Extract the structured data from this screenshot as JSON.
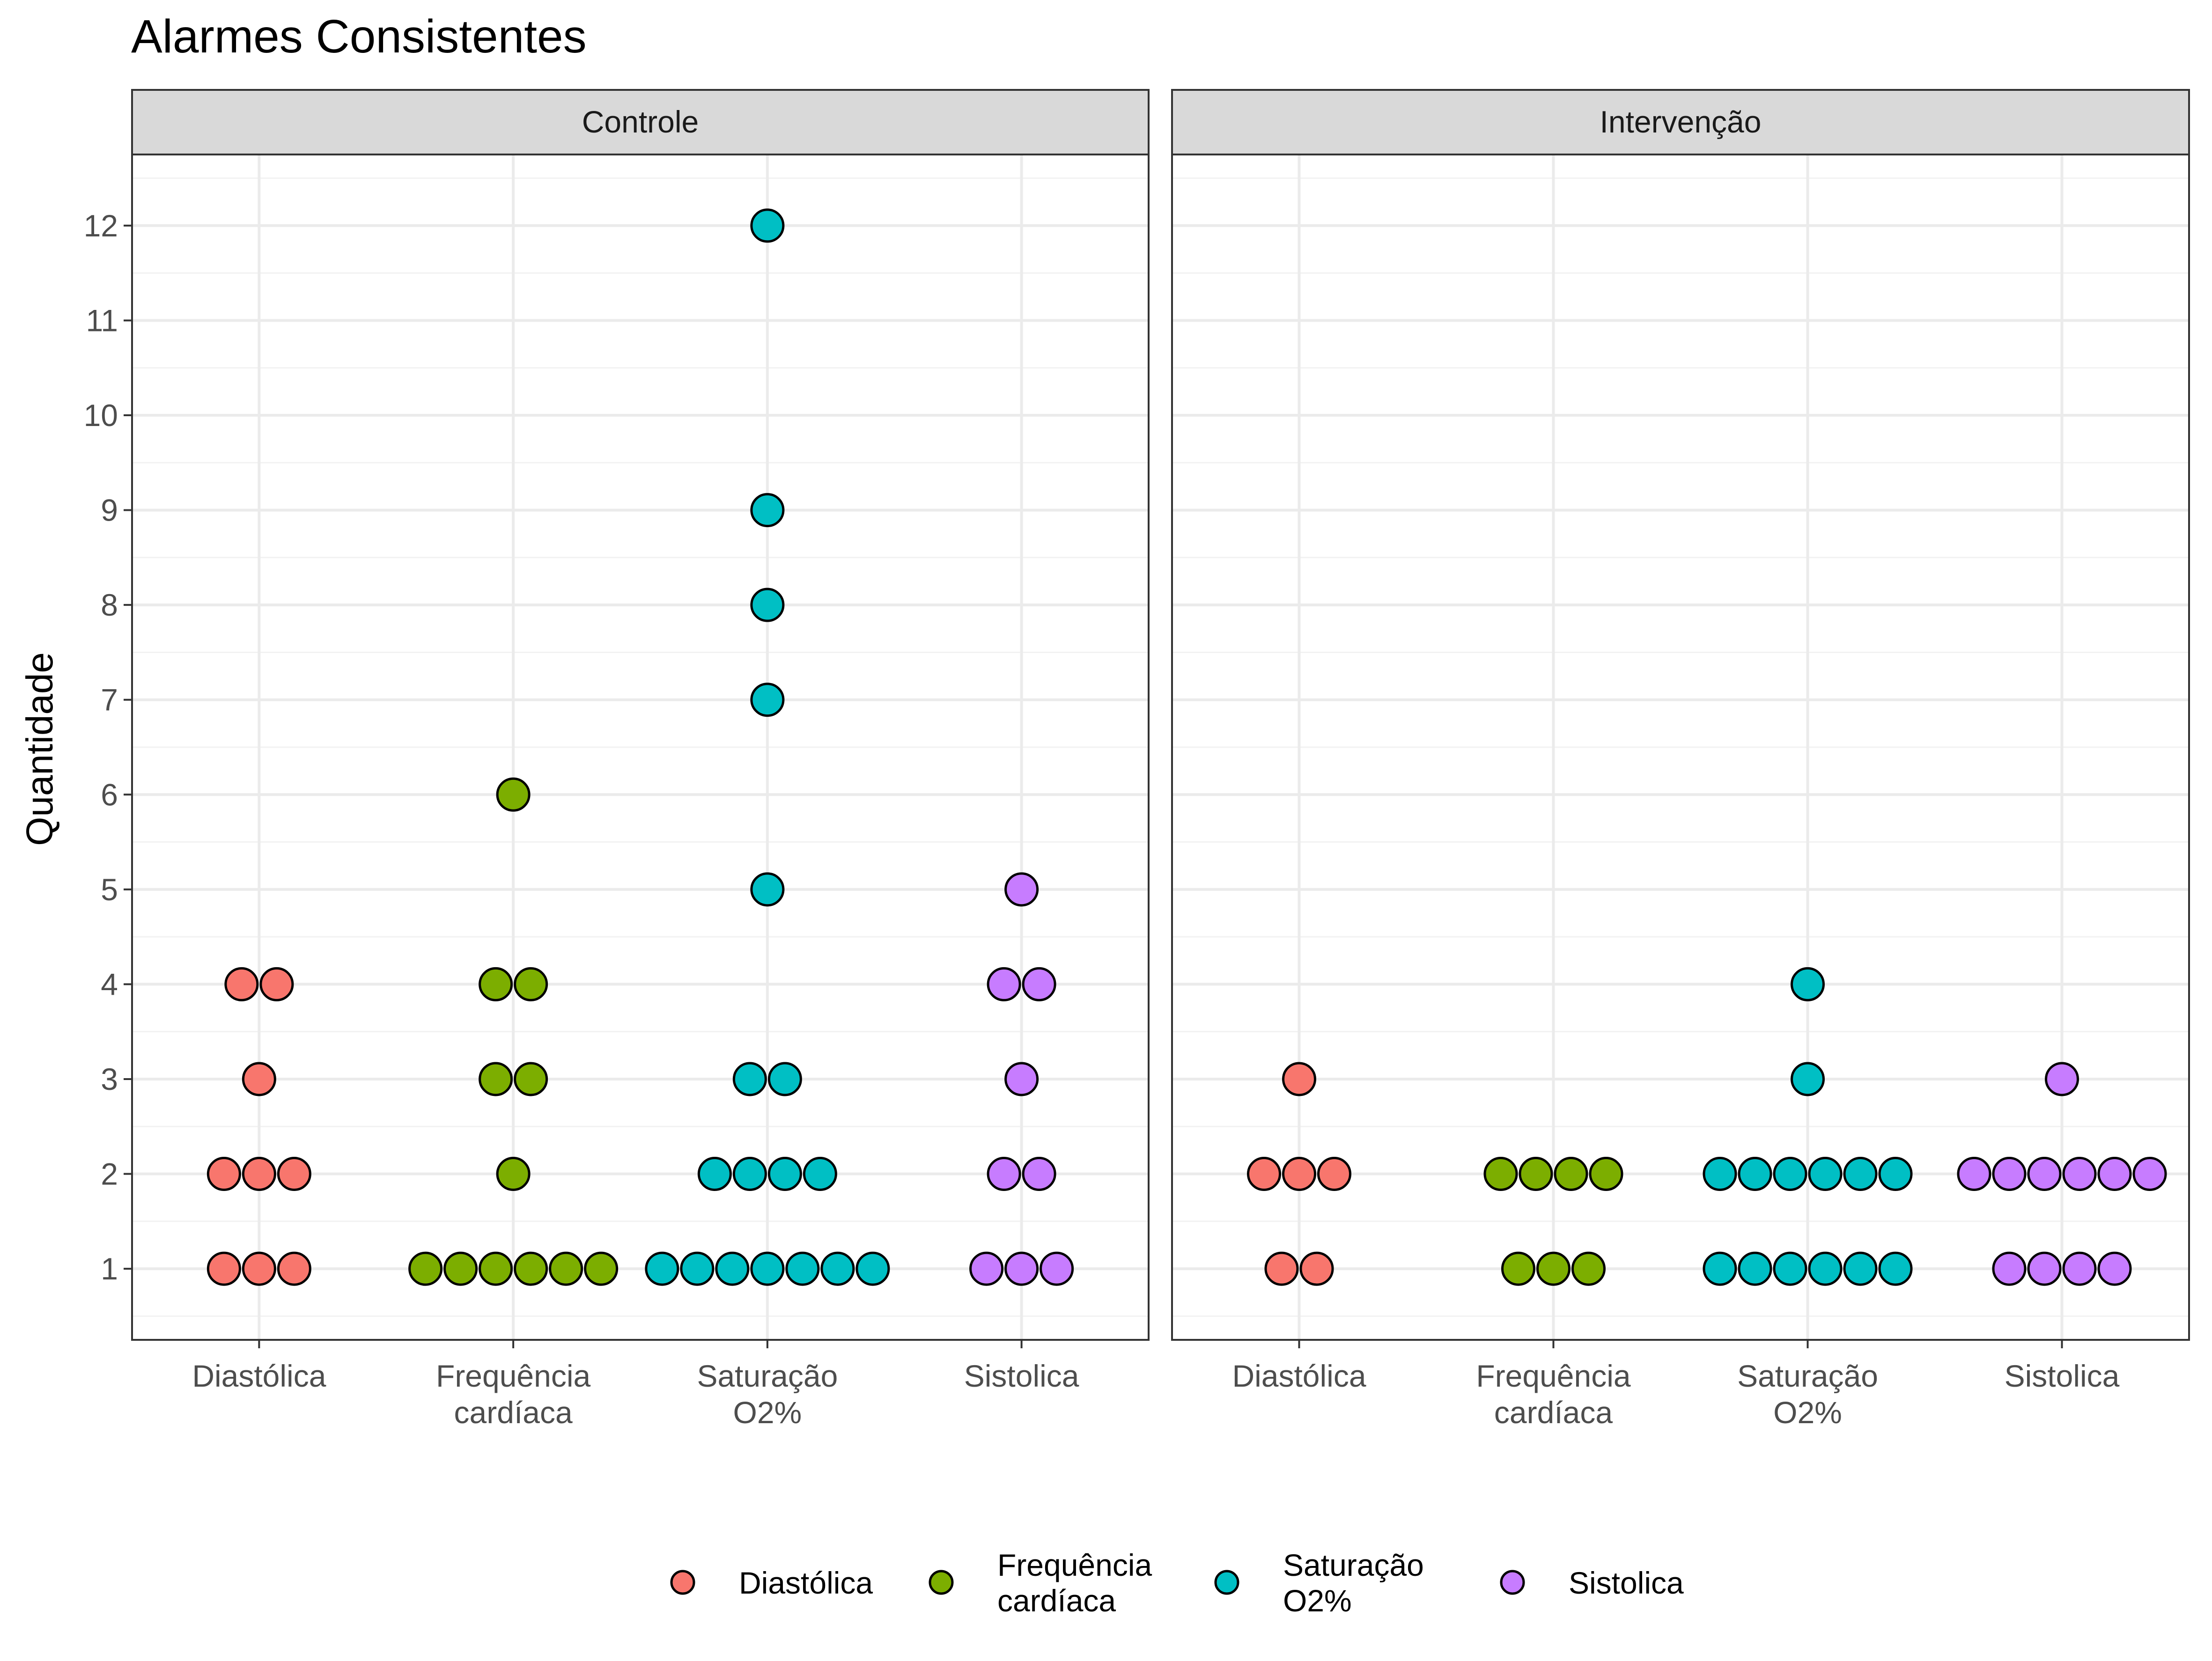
{
  "chart_data": {
    "type": "dotplot",
    "title": "Alarmes Consistentes",
    "ylabel": "Quantidade",
    "xlabel": "",
    "ylim": [
      0.25,
      12.75
    ],
    "yticks": [
      1,
      2,
      3,
      4,
      5,
      6,
      7,
      8,
      9,
      10,
      11,
      12
    ],
    "grid": true,
    "legend_position": "bottom",
    "categories": [
      {
        "key": "diastolica",
        "label_lines": [
          "Diastólica"
        ],
        "color": "#F8766D"
      },
      {
        "key": "frequencia",
        "label_lines": [
          "Frequência",
          "cardíaca"
        ],
        "color": "#7CAE00"
      },
      {
        "key": "saturacao",
        "label_lines": [
          "Saturação",
          "O2%"
        ],
        "color": "#00BFC4"
      },
      {
        "key": "sistolica",
        "label_lines": [
          "Sistolica"
        ],
        "color": "#C77CFF"
      }
    ],
    "legend": [
      {
        "label_lines": [
          "Diastólica"
        ],
        "color": "#F8766D"
      },
      {
        "label_lines": [
          "Frequência",
          "cardíaca"
        ],
        "color": "#7CAE00"
      },
      {
        "label_lines": [
          "Saturação",
          "O2%"
        ],
        "color": "#00BFC4"
      },
      {
        "label_lines": [
          "Sistolica"
        ],
        "color": "#C77CFF"
      }
    ],
    "panels": [
      {
        "title": "Controle",
        "series": [
          {
            "category": "diastolica",
            "counts": {
              "1": 3,
              "2": 3,
              "3": 1,
              "4": 2
            }
          },
          {
            "category": "frequencia",
            "counts": {
              "1": 6,
              "2": 1,
              "3": 2,
              "4": 2,
              "6": 1
            }
          },
          {
            "category": "saturacao",
            "counts": {
              "1": 7,
              "2": 4,
              "3": 2,
              "5": 1,
              "7": 1,
              "8": 1,
              "9": 1,
              "12": 1
            }
          },
          {
            "category": "sistolica",
            "counts": {
              "1": 3,
              "2": 2,
              "3": 1,
              "4": 2,
              "5": 1
            }
          }
        ]
      },
      {
        "title": "Intervenção",
        "series": [
          {
            "category": "diastolica",
            "counts": {
              "1": 2,
              "2": 3,
              "3": 1
            }
          },
          {
            "category": "frequencia",
            "counts": {
              "1": 3,
              "2": 4
            }
          },
          {
            "category": "saturacao",
            "counts": {
              "1": 6,
              "2": 6,
              "3": 1,
              "4": 1
            }
          },
          {
            "category": "sistolica",
            "counts": {
              "1": 4,
              "2": 6,
              "3": 1
            }
          }
        ]
      }
    ]
  }
}
